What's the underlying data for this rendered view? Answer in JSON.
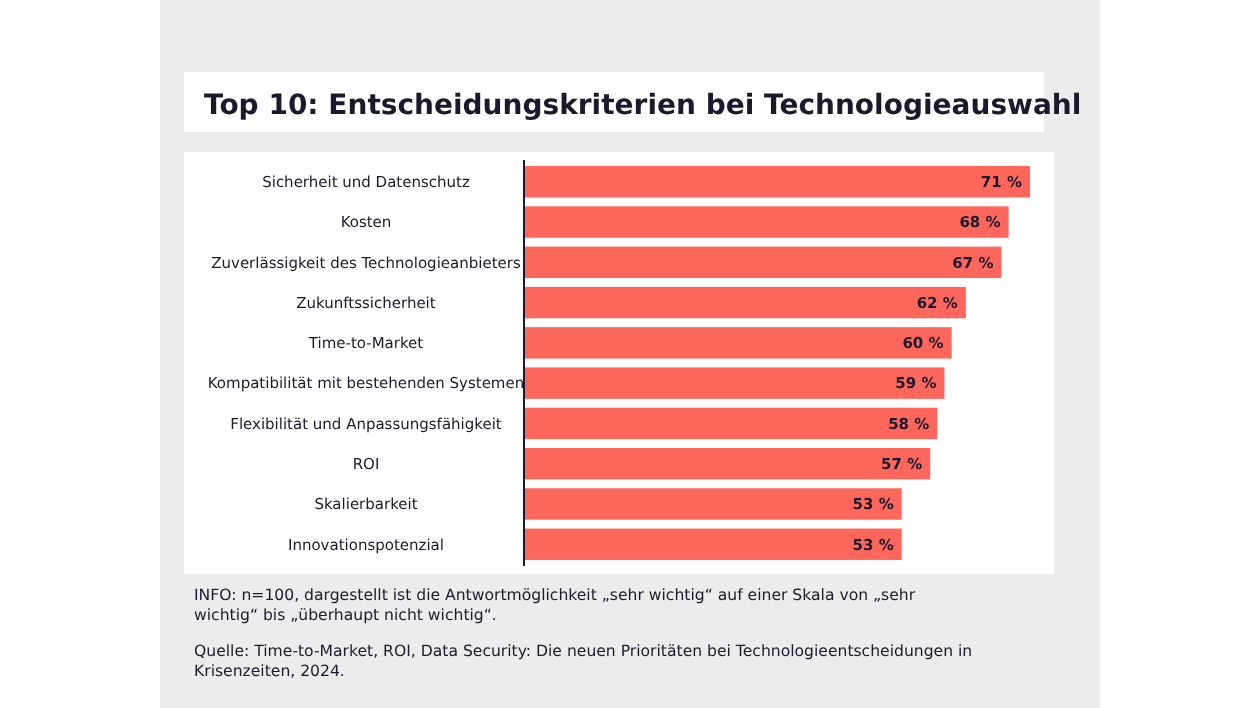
{
  "chart_data": {
    "type": "bar",
    "orientation": "horizontal",
    "title": "Top 10: Entscheidungskriterien bei Technologieauswahl",
    "categories": [
      "Sicherheit und Datenschutz",
      "Kosten",
      "Zuverlässigkeit des Technologieanbieters",
      "Zukunftssicherheit",
      "Time-to-Market",
      "Kompatibilität mit bestehenden Systemen",
      "Flexibilität und Anpassungsfähigkeit",
      "ROI",
      "Skalierbarkeit",
      "Innovationspotenzial"
    ],
    "values": [
      71,
      68,
      67,
      62,
      60,
      59,
      58,
      57,
      53,
      53
    ],
    "value_labels": [
      "71 %",
      "68 %",
      "67 %",
      "62 %",
      "60 %",
      "59 %",
      "58 %",
      "57 %",
      "53 %",
      "53 %"
    ],
    "color": "#ff675c",
    "annotations": [
      "INFO: n=100, dargestellt ist die Antwortmöglichkeit „sehr wichtig“ auf einer Skala von „sehr wichtig“ bis „überhaupt nicht wichtig“.",
      "Quelle: Time-to-Market, ROI, Data Security: Die neuen Prioritäten bei Technologieentscheidungen in Krisenzeiten, 2024."
    ]
  }
}
